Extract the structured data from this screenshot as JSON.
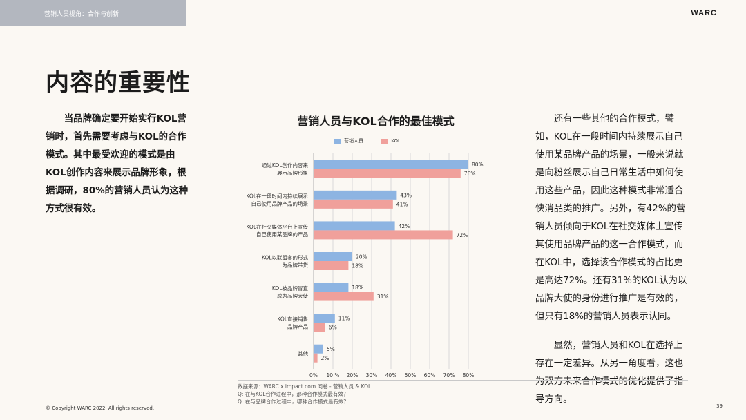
{
  "header": {
    "breadcrumb": "营销人员视角：合作与创新",
    "brand": "WARC"
  },
  "page_title": "内容的重要性",
  "left_paragraph": "当品牌确定要开始实行KOL营销时，首先需要考虑与KOL的合作模式。其中最受欢迎的模式是由KOL创作内容来展示品牌形象，根据调研，80%的营销人员认为这种方式很有效。",
  "right_paragraphs": [
    "还有一些其他的合作模式，譬如，KOL在一段时间内持续展示自己使用某品牌产品的场景，一般来说就是向粉丝展示自己日常生活中如何使用这些产品，因此这种模式非常适合快消品类的推广。另外，有42%的营销人员倾向于KOL在社交媒体上宣传其使用品牌产品的这一合作模式，而在KOL中，选择该合作模式的占比更是高达72%。还有31%的KOL认为以品牌大使的身份进行推广是有效的，但只有18%的营销人员表示认同。",
    "显然，营销人员和KOL在选择上存在一定差异。从另一角度看，这也为双方未来合作模式的优化提供了指导方向。"
  ],
  "colors": {
    "marketer": "#8db4e2",
    "kol": "#f0a09b",
    "grid": "#d9d9d9"
  },
  "chart_data": {
    "type": "bar",
    "orientation": "horizontal",
    "title": "营销人员与KOL合作的最佳模式",
    "categories": [
      [
        "通过KOL创作内容来",
        "展示品牌形象"
      ],
      [
        "KOL在一段时间内持续展示",
        "自己使用品牌产品的场景"
      ],
      [
        "KOL在社交媒体平台上宣传",
        "自己使用某品牌的产品"
      ],
      [
        "KOL以联盟客的形式",
        "为品牌带货"
      ],
      [
        "KOL被品牌冒直",
        "成为品牌大使"
      ],
      [
        "KOL直接销售",
        "品牌产品"
      ],
      [
        "其他"
      ]
    ],
    "series": [
      {
        "name": "营销人员",
        "values": [
          80,
          43,
          42,
          20,
          18,
          11,
          5
        ]
      },
      {
        "name": "KOL",
        "values": [
          76,
          41,
          72,
          18,
          31,
          6,
          2
        ]
      }
    ],
    "xlim": [
      0,
      80
    ],
    "xticks": [
      "0%",
      "10 %",
      "20%",
      "30%",
      "40%",
      "50%",
      "60%",
      "70%",
      "80%"
    ],
    "value_suffix": "%"
  },
  "source": {
    "line1": "数据来源：WARC x impact.com 问卷 - 营销人员 & KOL",
    "line2": "Q: 在与KOL合作过程中，那种合作模式最有效？",
    "line3": "Q: 在与品牌合作过程中，哪种合作模式最有效？"
  },
  "footer": {
    "copyright": "©  Copyright WARC 2022. All rights reserved.",
    "page_number": "39"
  }
}
